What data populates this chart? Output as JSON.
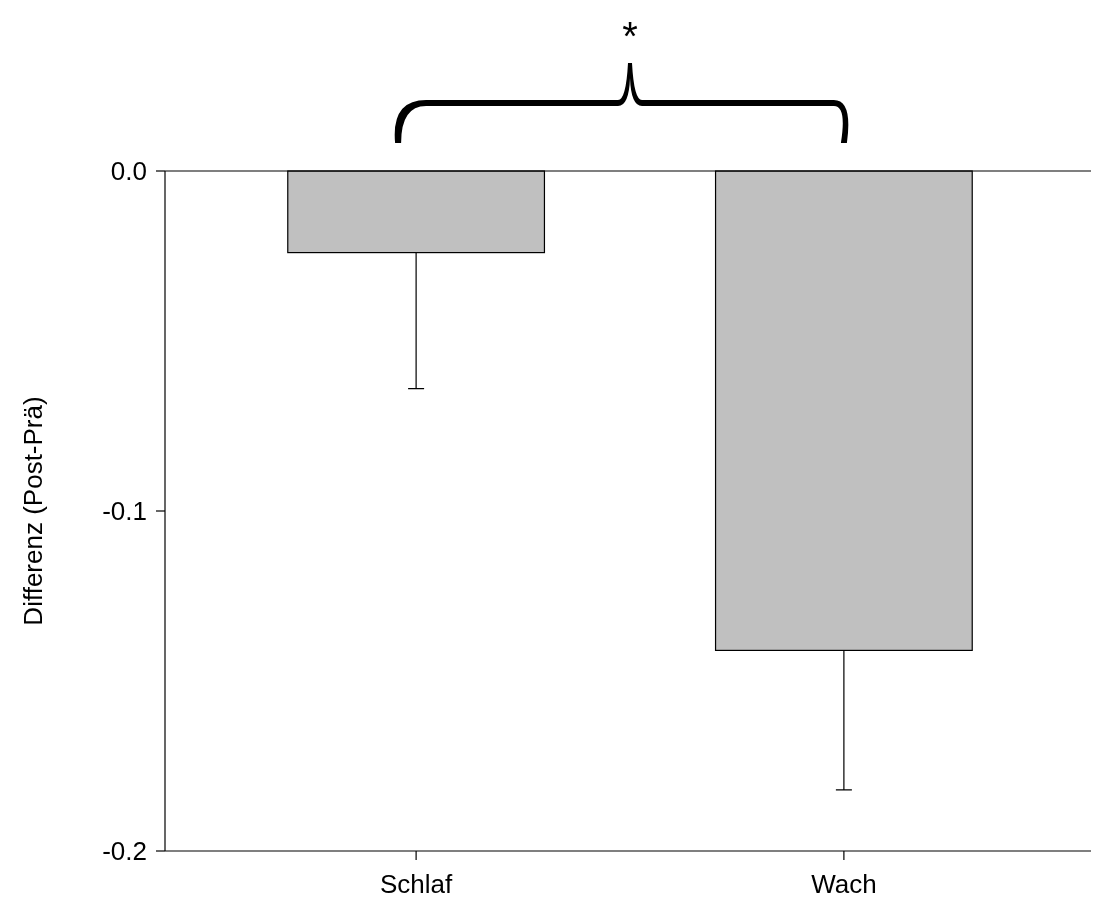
{
  "chart_data": {
    "type": "bar",
    "categories": [
      "Schlaf",
      "Wach"
    ],
    "values": [
      -0.024,
      -0.141
    ],
    "errors": [
      [
        -0.064,
        -0.024
      ],
      [
        -0.182,
        -0.141
      ]
    ],
    "color": "#c0c0c0",
    "ylabel": "Differenz (Post-Prä)",
    "ylim": [
      -0.2,
      0.0
    ],
    "yticks": [
      {
        "value": -0.2,
        "label": "-0.2"
      },
      {
        "value": -0.1,
        "label": "-0.1"
      },
      {
        "value": 0.0,
        "label": "0.0"
      }
    ],
    "annotations": [
      "*"
    ],
    "grid": false
  }
}
